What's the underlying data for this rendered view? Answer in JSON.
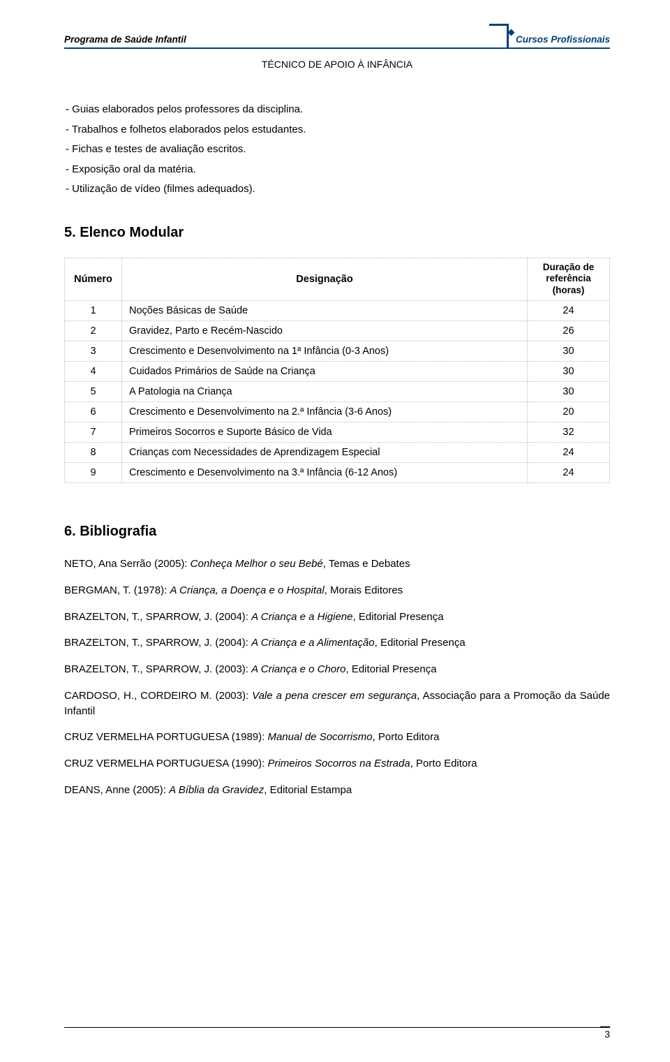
{
  "header": {
    "left": "Programa de Saúde Infantil",
    "right": "Cursos Profissionais",
    "subtitle": "TÉCNICO DE APOIO À INFÂNCIA"
  },
  "bullets": [
    "- Guias elaborados pelos professores da disciplina.",
    "- Trabalhos e folhetos elaborados pelos estudantes.",
    "- Fichas e testes de avaliação escritos.",
    "- Exposição oral da matéria.",
    "- Utilização de vídeo (filmes adequados)."
  ],
  "section5": {
    "title": "5. Elenco Modular",
    "table": {
      "cols": [
        "Número",
        "Designação",
        "Duração de referência (horas)"
      ],
      "rows": [
        [
          "1",
          "Noções Básicas de Saúde",
          "24"
        ],
        [
          "2",
          "Gravidez, Parto e Recém-Nascido",
          "26"
        ],
        [
          "3",
          "Crescimento e Desenvolvimento na 1ª Infância (0-3 Anos)",
          "30"
        ],
        [
          "4",
          "Cuidados Primários de Saúde na Criança",
          "30"
        ],
        [
          "5",
          "A Patologia na Criança",
          "30"
        ],
        [
          "6",
          "Crescimento e Desenvolvimento na 2.ª Infância (3-6 Anos)",
          "20"
        ],
        [
          "7",
          "Primeiros Socorros e Suporte Básico de Vida",
          "32"
        ],
        [
          "8",
          "Crianças com Necessidades de Aprendizagem Especial",
          "24"
        ],
        [
          "9",
          "Crescimento e Desenvolvimento na 3.ª Infância (6-12 Anos)",
          "24"
        ]
      ]
    }
  },
  "section6": {
    "title": "6. Bibliografia",
    "entries": [
      {
        "pre": "NETO, Ana Serrão (2005): ",
        "it": "Conheça Melhor o seu Bebé",
        "post": ", Temas e Debates"
      },
      {
        "pre": "BERGMAN, T. (1978): ",
        "it": "A Criança, a Doença e o Hospital",
        "post": ", Morais Editores"
      },
      {
        "pre": "BRAZELTON, T., SPARROW, J. (2004): ",
        "it": "A Criança e a Higiene",
        "post": ", Editorial Presença"
      },
      {
        "pre": "BRAZELTON, T., SPARROW, J. (2004): ",
        "it": "A Criança e a Alimentação",
        "post": ", Editorial Presença"
      },
      {
        "pre": "BRAZELTON, T., SPARROW, J. (2003): ",
        "it": "A Criança e o Choro",
        "post": ", Editorial Presença"
      },
      {
        "pre": "CARDOSO, H., CORDEIRO M. (2003): ",
        "it": "Vale a pena crescer em segurança",
        "post": ", Associação para a Promoção da Saúde Infantil"
      },
      {
        "pre": "CRUZ VERMELHA PORTUGUESA (1989): ",
        "it": "Manual de Socorrismo",
        "post": ", Porto Editora"
      },
      {
        "pre": "CRUZ VERMELHA PORTUGUESA (1990): ",
        "it": "Primeiros Socorros na Estrada",
        "post": ", Porto Editora"
      },
      {
        "pre": "DEANS, Anne (2005): ",
        "it": "A Bíblia da Gravidez",
        "post": ", Editorial Estampa"
      }
    ]
  },
  "pageNumber": "3",
  "colors": {
    "brand": "#003f7a",
    "text": "#000000",
    "background": "#ffffff",
    "tableBorder": "#bbbbbb"
  },
  "typography": {
    "body_fontsize": 15,
    "heading_fontsize": 20,
    "header_fontsize": 13.5,
    "table_fontsize": 14.5
  }
}
